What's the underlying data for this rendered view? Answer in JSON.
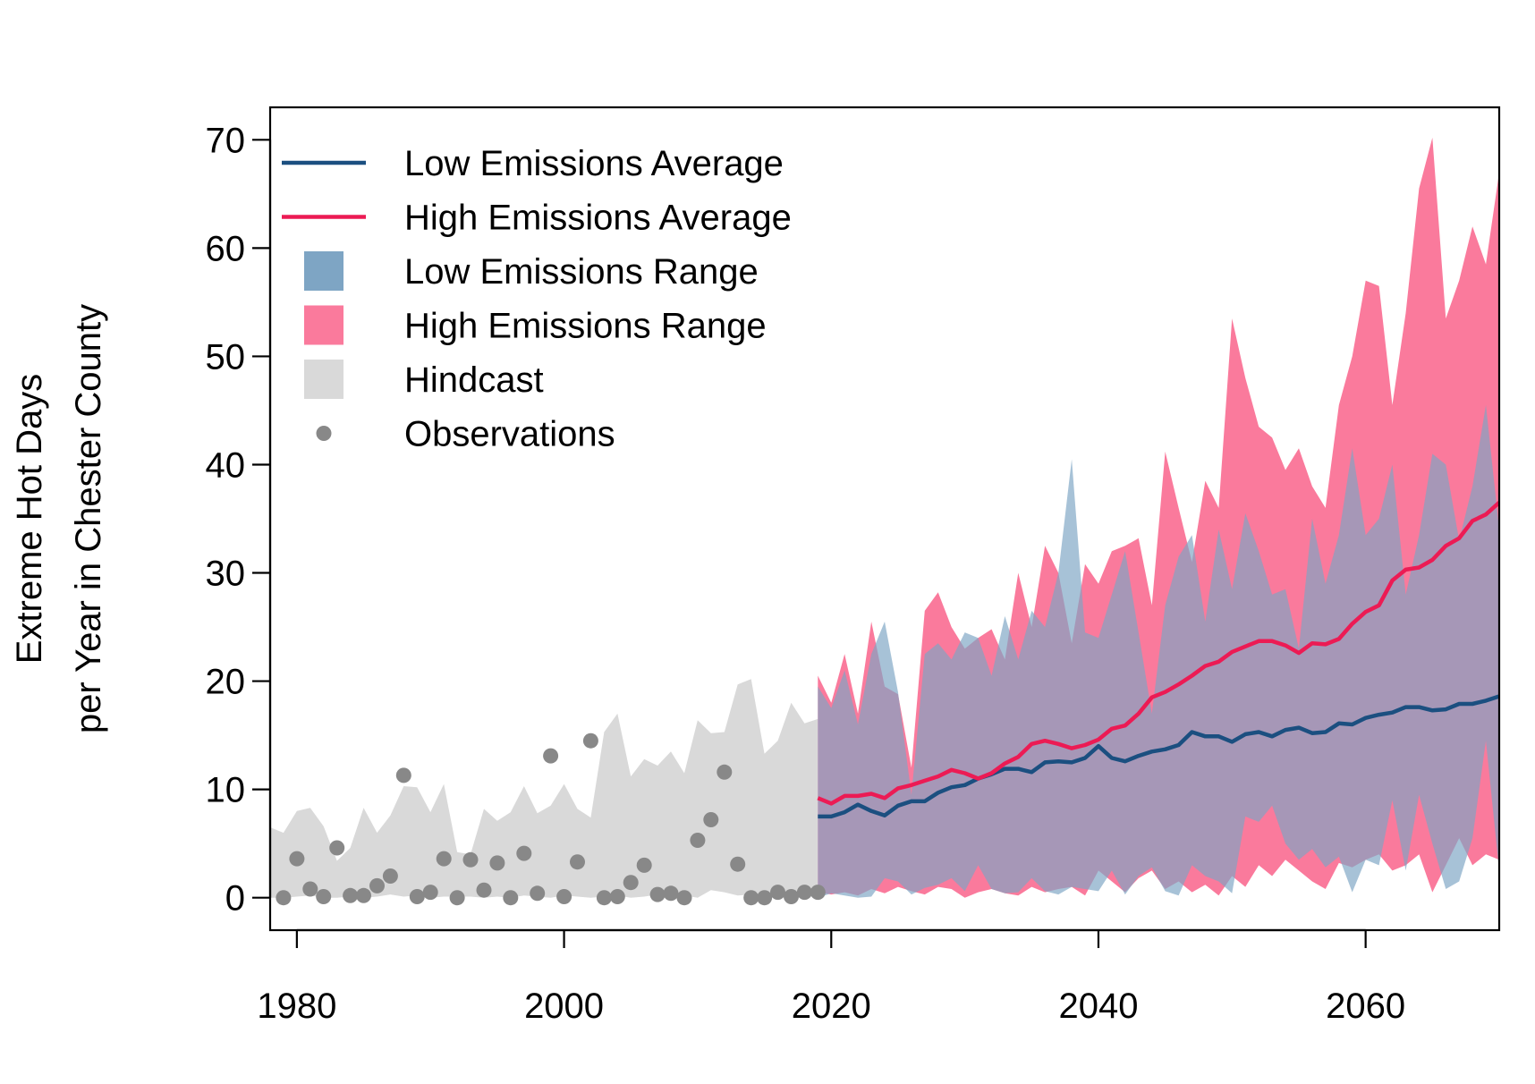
{
  "chart_data": {
    "type": "area",
    "xlabel": "",
    "ylabel_lines": [
      "Extreme Hot Days",
      "per Year in Chester County"
    ],
    "xlim": [
      1978,
      2070
    ],
    "ylim": [
      -3,
      73
    ],
    "x_ticks": [
      1980,
      2000,
      2020,
      2040,
      2060
    ],
    "y_ticks": [
      0,
      10,
      20,
      30,
      40,
      50,
      60,
      70
    ],
    "grid": false,
    "legend_position": "top-left",
    "legend": [
      {
        "key": "low_avg",
        "label": "Low Emissions Average",
        "symbol": "line"
      },
      {
        "key": "high_avg",
        "label": "High Emissions Average",
        "symbol": "line"
      },
      {
        "key": "low_range",
        "label": "Low Emissions Range",
        "symbol": "box"
      },
      {
        "key": "high_range",
        "label": "High Emissions Range",
        "symbol": "box"
      },
      {
        "key": "hindcast",
        "label": "Hindcast",
        "symbol": "box"
      },
      {
        "key": "obs",
        "label": "Observations",
        "symbol": "dot"
      }
    ],
    "colors": {
      "low_avg": "#1b4f80",
      "high_avg": "#ec1b54",
      "low_range": "#7ea5c4",
      "high_range": "#fa7a9c",
      "hindcast": "#d9d9d9",
      "obs": "#888888"
    },
    "hindcast": {
      "years": [
        1978,
        1979,
        1980,
        1981,
        1982,
        1983,
        1984,
        1985,
        1986,
        1987,
        1988,
        1989,
        1990,
        1991,
        1992,
        1993,
        1994,
        1995,
        1996,
        1997,
        1998,
        1999,
        2000,
        2001,
        2002,
        2003,
        2004,
        2005,
        2006,
        2007,
        2008,
        2009,
        2010,
        2011,
        2012,
        2013,
        2014,
        2015,
        2016,
        2017,
        2018,
        2019
      ],
      "upper": [
        6.5,
        6.0,
        8.0,
        8.3,
        6.6,
        3.4,
        4.6,
        8.3,
        6.0,
        7.6,
        10.3,
        10.2,
        7.9,
        10.5,
        4.2,
        4.0,
        8.2,
        7.1,
        7.9,
        10.3,
        7.8,
        8.5,
        10.5,
        8.2,
        7.4,
        15.3,
        17.0,
        11.2,
        12.8,
        12.2,
        13.5,
        11.5,
        16.4,
        15.2,
        15.3,
        19.7,
        20.2,
        13.3,
        14.5,
        18.0,
        16.1,
        16.5
      ],
      "lower": [
        0.0,
        0.0,
        0.1,
        0.2,
        0.0,
        0.0,
        0.1,
        0.0,
        0.1,
        0.3,
        0.1,
        0.2,
        0.0,
        0.1,
        0.1,
        0.1,
        0.0,
        0.1,
        0.0,
        0.2,
        0.1,
        0.0,
        0.2,
        0.1,
        0.0,
        0.1,
        0.2,
        0.0,
        0.1,
        0.3,
        0.0,
        0.2,
        0.0,
        0.7,
        0.5,
        0.2,
        0.3,
        0.1,
        0.2,
        0.3,
        0.2,
        0.0
      ]
    },
    "observations": {
      "years": [
        1979,
        1980,
        1981,
        1982,
        1983,
        1984,
        1985,
        1986,
        1987,
        1988,
        1989,
        1990,
        1991,
        1992,
        1993,
        1994,
        1995,
        1996,
        1997,
        1998,
        1999,
        2000,
        2001,
        2002,
        2003,
        2004,
        2005,
        2006,
        2007,
        2008,
        2009,
        2010,
        2011,
        2012,
        2013,
        2014,
        2015,
        2016,
        2017,
        2018,
        2019
      ],
      "values": [
        0,
        3.6,
        0.8,
        0.1,
        4.6,
        0.2,
        0.2,
        1.1,
        2.0,
        11.3,
        0.1,
        0.5,
        3.6,
        0.0,
        3.5,
        0.7,
        3.2,
        0.0,
        4.1,
        0.4,
        13.1,
        0.1,
        3.3,
        14.5,
        0.0,
        0.1,
        1.4,
        3.0,
        0.3,
        0.4,
        0.0,
        5.3,
        7.2,
        11.6,
        3.1,
        0.0,
        0.0,
        0.5,
        0.1,
        0.5,
        0.5
      ]
    },
    "projection_years": [
      2019,
      2020,
      2021,
      2022,
      2023,
      2024,
      2025,
      2026,
      2027,
      2028,
      2029,
      2030,
      2031,
      2032,
      2033,
      2034,
      2035,
      2036,
      2037,
      2038,
      2039,
      2040,
      2041,
      2042,
      2043,
      2044,
      2045,
      2046,
      2047,
      2048,
      2049,
      2050,
      2051,
      2052,
      2053,
      2054,
      2055,
      2056,
      2057,
      2058,
      2059,
      2060,
      2061,
      2062,
      2063,
      2064,
      2065,
      2066,
      2067,
      2068,
      2069,
      2070
    ],
    "high_range": {
      "upper": [
        20.5,
        18.0,
        22.5,
        17.0,
        25.5,
        19.5,
        18.8,
        12.0,
        26.5,
        28.2,
        25.0,
        23.0,
        24.0,
        24.8,
        22.0,
        30.0,
        25.0,
        32.5,
        30.0,
        23.5,
        30.8,
        29.0,
        32.0,
        32.5,
        33.2,
        27.0,
        41.2,
        36.0,
        31.0,
        38.5,
        36.0,
        53.5,
        48.0,
        43.5,
        42.5,
        39.5,
        41.5,
        38.0,
        36.0,
        45.5,
        50.0,
        57.0,
        56.5,
        45.5,
        54.0,
        65.5,
        70.2,
        53.5,
        57.0,
        62.0,
        58.5,
        67.0
      ],
      "lower": [
        0.5,
        0.3,
        0.5,
        0.2,
        0.8,
        0.4,
        1.0,
        0.6,
        0.3,
        1.0,
        0.8,
        0.0,
        0.5,
        0.8,
        0.4,
        0.2,
        1.0,
        0.5,
        0.8,
        1.0,
        0.2,
        2.5,
        1.5,
        0.5,
        1.8,
        2.5,
        0.8,
        1.5,
        0.5,
        1.2,
        0.2,
        2.0,
        1.0,
        3.0,
        2.0,
        3.5,
        2.5,
        1.5,
        0.8,
        3.2,
        2.8,
        3.5,
        4.0,
        2.5,
        3.0,
        4.0,
        0.5,
        3.0,
        5.5,
        3.0,
        4.0,
        3.5
      ]
    },
    "low_range": {
      "upper": [
        19.5,
        17.5,
        21.0,
        16.0,
        22.5,
        25.5,
        19.0,
        9.5,
        22.5,
        23.5,
        22.0,
        24.5,
        24.0,
        20.5,
        26.0,
        22.0,
        26.5,
        25.0,
        30.0,
        40.5,
        24.5,
        24.0,
        28.0,
        32.0,
        24.5,
        17.0,
        27.0,
        31.5,
        33.5,
        25.5,
        34.0,
        28.5,
        35.5,
        32.0,
        28.0,
        28.5,
        23.0,
        35.0,
        29.0,
        33.5,
        41.5,
        33.5,
        35.0,
        40.0,
        28.0,
        33.5,
        41.0,
        40.0,
        33.0,
        38.0,
        45.5,
        34.0
      ],
      "lower": [
        0.0,
        0.4,
        0.2,
        0.0,
        0.1,
        1.8,
        1.5,
        0.3,
        0.9,
        1.2,
        1.8,
        0.6,
        3.0,
        0.8,
        0.4,
        0.5,
        1.8,
        0.6,
        0.3,
        1.0,
        0.8,
        0.6,
        2.5,
        0.3,
        2.0,
        2.8,
        0.6,
        0.2,
        3.0,
        2.0,
        1.5,
        0.4,
        7.5,
        7.0,
        8.5,
        5.0,
        3.5,
        4.5,
        2.8,
        3.8,
        0.5,
        3.5,
        3.0,
        9.0,
        2.5,
        9.5,
        5.0,
        0.8,
        1.5,
        5.5,
        14.5,
        2.5
      ]
    },
    "low_avg": [
      7.5,
      7.5,
      7.9,
      8.6,
      8.0,
      7.6,
      8.5,
      8.9,
      8.9,
      9.7,
      10.2,
      10.4,
      11.0,
      11.4,
      11.9,
      11.9,
      11.6,
      12.5,
      12.6,
      12.5,
      12.9,
      14.0,
      12.9,
      12.6,
      13.1,
      13.5,
      13.7,
      14.1,
      15.3,
      14.9,
      14.9,
      14.4,
      15.1,
      15.3,
      14.9,
      15.5,
      15.7,
      15.2,
      15.3,
      16.1,
      16.0,
      16.6,
      16.9,
      17.1,
      17.6,
      17.6,
      17.3,
      17.4,
      17.9,
      17.9,
      18.2,
      18.6
    ],
    "high_avg": [
      9.2,
      8.7,
      9.4,
      9.4,
      9.6,
      9.2,
      10.1,
      10.4,
      10.8,
      11.2,
      11.8,
      11.5,
      11.0,
      11.5,
      12.4,
      13.0,
      14.2,
      14.5,
      14.2,
      13.8,
      14.1,
      14.6,
      15.6,
      15.9,
      17.0,
      18.5,
      19.0,
      19.7,
      20.5,
      21.4,
      21.8,
      22.7,
      23.2,
      23.7,
      23.7,
      23.3,
      22.6,
      23.5,
      23.4,
      23.9,
      25.3,
      26.4,
      27.0,
      29.3,
      30.3,
      30.5,
      31.2,
      32.5,
      33.2,
      34.8,
      35.4,
      36.5
    ]
  }
}
